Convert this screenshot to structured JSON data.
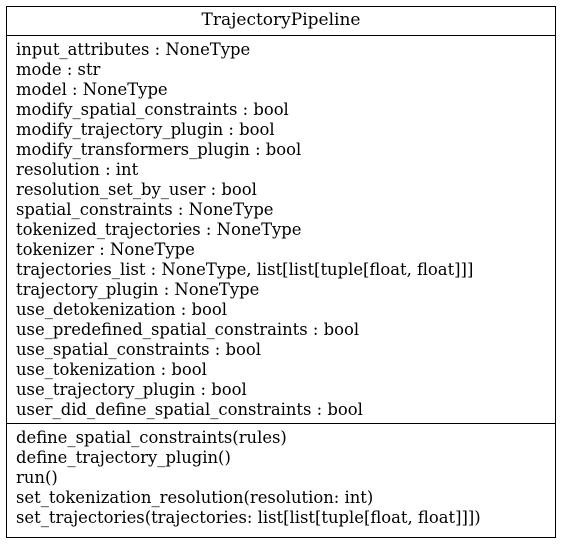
{
  "class_diagram": {
    "name": "TrajectoryPipeline",
    "attributes": [
      "input_attributes : NoneType",
      "mode : str",
      "model : NoneType",
      "modify_spatial_constraints : bool",
      "modify_trajectory_plugin : bool",
      "modify_transformers_plugin : bool",
      "resolution : int",
      "resolution_set_by_user : bool",
      "spatial_constraints : NoneType",
      "tokenized_trajectories : NoneType",
      "tokenizer : NoneType",
      "trajectories_list : NoneType, list[list[tuple[float, float]]]",
      "trajectory_plugin : NoneType",
      "use_detokenization : bool",
      "use_predefined_spatial_constraints : bool",
      "use_spatial_constraints : bool",
      "use_tokenization : bool",
      "use_trajectory_plugin : bool",
      "user_did_define_spatial_constraints : bool"
    ],
    "methods": [
      "define_spatial_constraints(rules)",
      "define_trajectory_plugin()",
      "run()",
      "set_tokenization_resolution(resolution: int)",
      "set_trajectories(trajectories: list[list[tuple[float, float]]])"
    ]
  }
}
